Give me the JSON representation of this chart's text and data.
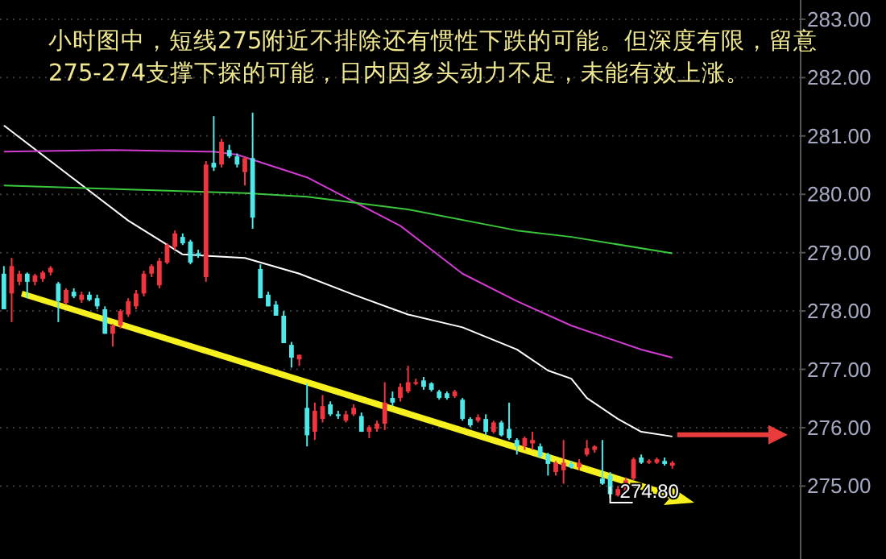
{
  "chart_data": {
    "type": "candlestick",
    "title": "小时图中，短线275附近不排除还有惯性下跌的可能。但深度有限，留意275-274支撑下探的可能，日内因多头动力不足，未能有效上涨。",
    "categories": [
      null,
      null,
      null,
      null,
      null,
      null,
      null,
      null,
      null,
      null,
      null,
      null,
      null,
      null,
      null,
      null,
      null,
      null,
      null,
      null,
      null,
      null,
      null,
      null,
      null,
      null,
      null,
      null,
      null,
      null,
      null,
      null,
      null,
      null,
      null,
      null,
      null,
      null,
      null,
      null,
      null,
      null,
      null,
      null,
      null,
      null,
      null,
      null,
      null,
      null,
      null,
      null,
      null,
      null,
      null,
      null,
      null,
      null,
      null,
      null,
      null,
      null,
      null,
      null,
      null,
      null,
      null,
      null,
      null,
      null,
      null,
      null,
      null,
      null,
      null,
      null,
      null,
      null,
      null,
      null,
      null,
      null,
      null,
      null,
      null,
      null,
      null,
      null,
      null,
      null,
      null,
      null,
      null,
      null,
      null,
      null,
      null,
      null,
      null,
      null,
      null,
      null,
      null
    ],
    "ohlc": [
      [
        278.64,
        278.77,
        278.03,
        278.03
      ],
      [
        278.3,
        278.91,
        277.81,
        278.77
      ],
      [
        278.5,
        278.69,
        278.44,
        278.64
      ],
      [
        278.64,
        278.66,
        278.22,
        278.5
      ],
      [
        278.5,
        278.64,
        278.44,
        278.61
      ],
      [
        278.55,
        278.69,
        278.5,
        278.66
      ],
      [
        278.66,
        278.77,
        278.61,
        278.74
      ],
      [
        278.47,
        278.5,
        277.81,
        278.17
      ],
      [
        278.14,
        278.39,
        278.11,
        278.36
      ],
      [
        278.33,
        278.39,
        278.22,
        278.25
      ],
      [
        278.19,
        278.33,
        278.14,
        278.28
      ],
      [
        278.28,
        278.33,
        278.17,
        278.19
      ],
      [
        278.22,
        278.28,
        278.03,
        278.08
      ],
      [
        278.03,
        278.08,
        277.61,
        277.61
      ],
      [
        277.61,
        277.78,
        277.39,
        277.75
      ],
      [
        277.75,
        278.03,
        277.7,
        278.0
      ],
      [
        277.94,
        278.22,
        277.9,
        278.17
      ],
      [
        278.08,
        278.36,
        278.03,
        278.3
      ],
      [
        278.3,
        278.69,
        278.25,
        278.64
      ],
      [
        278.64,
        278.8,
        278.58,
        278.77
      ],
      [
        278.44,
        278.91,
        278.39,
        278.86
      ],
      [
        278.83,
        279.16,
        278.8,
        279.13
      ],
      [
        279.1,
        279.38,
        279.05,
        279.33
      ],
      [
        279.27,
        279.33,
        279.13,
        279.16
      ],
      [
        279.19,
        279.22,
        278.8,
        278.83
      ],
      [
        278.99,
        279.05,
        278.91,
        278.94
      ],
      [
        278.58,
        280.57,
        278.5,
        280.51
      ],
      [
        280.54,
        281.34,
        280.4,
        280.46
      ],
      [
        280.51,
        280.95,
        280.46,
        280.9
      ],
      [
        280.76,
        280.85,
        280.62,
        280.65
      ],
      [
        280.65,
        280.7,
        280.46,
        280.51
      ],
      [
        280.38,
        280.65,
        280.15,
        280.62
      ],
      [
        280.62,
        281.4,
        279.41,
        279.6
      ],
      [
        278.72,
        278.8,
        278.22,
        278.22
      ],
      [
        278.28,
        278.33,
        278.08,
        278.08
      ],
      [
        278.11,
        278.17,
        277.92,
        277.92
      ],
      [
        277.92,
        278.0,
        277.45,
        277.45
      ],
      [
        277.42,
        277.47,
        277.03,
        277.2
      ],
      [
        277.17,
        277.25,
        277.06,
        277.25
      ],
      [
        276.34,
        276.76,
        275.68,
        275.87
      ],
      [
        275.93,
        276.43,
        275.79,
        276.29
      ],
      [
        276.15,
        276.56,
        276.09,
        276.37
      ],
      [
        276.4,
        276.45,
        276.2,
        276.23
      ],
      [
        276.23,
        276.29,
        276.15,
        276.2
      ],
      [
        276.12,
        276.29,
        276.09,
        276.23
      ],
      [
        276.23,
        276.4,
        276.2,
        276.34
      ],
      [
        276.2,
        276.26,
        275.93,
        275.93
      ],
      [
        275.93,
        276.04,
        275.82,
        276.01
      ],
      [
        275.98,
        276.12,
        275.93,
        276.07
      ],
      [
        276.07,
        276.78,
        275.96,
        276.43
      ],
      [
        276.51,
        276.62,
        276.37,
        276.43
      ],
      [
        276.51,
        276.76,
        276.45,
        276.7
      ],
      [
        276.62,
        277.06,
        276.59,
        276.78
      ],
      [
        276.76,
        276.84,
        276.73,
        276.78
      ],
      [
        276.81,
        276.87,
        276.65,
        276.7
      ],
      [
        276.76,
        276.78,
        276.62,
        276.65
      ],
      [
        276.62,
        276.65,
        276.48,
        276.51
      ],
      [
        276.59,
        276.62,
        276.48,
        276.51
      ],
      [
        276.54,
        276.65,
        276.51,
        276.62
      ],
      [
        276.48,
        276.51,
        276.12,
        276.15
      ],
      [
        276.15,
        276.18,
        276.01,
        276.04
      ],
      [
        276.12,
        276.23,
        276.09,
        276.18
      ],
      [
        276.15,
        276.23,
        275.87,
        275.93
      ],
      [
        275.93,
        276.12,
        275.9,
        276.09
      ],
      [
        276.09,
        276.12,
        275.85,
        275.87
      ],
      [
        275.98,
        276.43,
        275.79,
        275.82
      ],
      [
        275.79,
        275.82,
        275.54,
        275.68
      ],
      [
        275.68,
        275.85,
        275.62,
        275.82
      ],
      [
        275.73,
        275.93,
        275.62,
        275.79
      ],
      [
        275.68,
        275.73,
        275.49,
        275.51
      ],
      [
        275.54,
        275.57,
        275.18,
        275.38
      ],
      [
        275.24,
        275.43,
        275.18,
        275.4
      ],
      [
        275.27,
        275.79,
        275.04,
        275.4
      ],
      [
        275.38,
        275.43,
        275.3,
        275.32
      ],
      [
        275.32,
        275.46,
        275.27,
        275.4
      ],
      [
        275.54,
        275.79,
        275.51,
        275.65
      ],
      [
        275.62,
        275.7,
        275.57,
        275.68
      ],
      [
        275.13,
        275.79,
        275.02,
        275.04
      ],
      [
        275.18,
        275.24,
        274.8,
        274.86
      ],
      [
        274.84,
        275.0,
        274.82,
        274.95
      ],
      [
        274.92,
        275.15,
        274.88,
        275.1
      ],
      [
        275.13,
        275.49,
        275.1,
        275.46
      ],
      [
        275.49,
        275.54,
        275.38,
        275.4
      ],
      [
        275.4,
        275.46,
        275.38,
        275.43
      ],
      [
        275.4,
        275.49,
        275.38,
        275.46
      ],
      [
        275.43,
        275.49,
        275.35,
        275.38
      ],
      [
        275.35,
        275.43,
        275.3,
        275.4
      ],
      null,
      null,
      null,
      null,
      null,
      null,
      null,
      null,
      null,
      null,
      null,
      null,
      null,
      null,
      null,
      null
    ],
    "colors": [
      "#4ee8e8",
      "#f0353f",
      "#f0353f",
      "#4ee8e8",
      "#f0353f",
      "#f0353f",
      "#f0353f",
      "#4ee8e8",
      "#f0353f",
      "#4ee8e8",
      "#f0353f",
      "#4ee8e8",
      "#4ee8e8",
      "#4ee8e8",
      "#f0353f",
      "#f0353f",
      "#f0353f",
      "#f0353f",
      "#f0353f",
      "#f0353f",
      "#f0353f",
      "#f0353f",
      "#f0353f",
      "#4ee8e8",
      "#4ee8e8",
      "#4ee8e8",
      "#f0353f",
      "#4ee8e8",
      "#f0353f",
      "#4ee8e8",
      "#4ee8e8",
      "#f0353f",
      "#4ee8e8",
      "#4ee8e8",
      "#4ee8e8",
      "#4ee8e8",
      "#4ee8e8",
      "#4ee8e8",
      "#f0353f",
      "#4ee8e8",
      "#f0353f",
      "#f0353f",
      "#4ee8e8",
      "#4ee8e8",
      "#f0353f",
      "#f0353f",
      "#4ee8e8",
      "#f0353f",
      "#f0353f",
      "#f0353f",
      "#4ee8e8",
      "#f0353f",
      "#f0353f",
      "#f0353f",
      "#4ee8e8",
      "#4ee8e8",
      "#4ee8e8",
      "#4ee8e8",
      "#f0353f",
      "#4ee8e8",
      "#4ee8e8",
      "#f0353f",
      "#4ee8e8",
      "#f0353f",
      "#4ee8e8",
      "#4ee8e8",
      "#4ee8e8",
      "#f0353f",
      "#f0353f",
      "#4ee8e8",
      "#4ee8e8",
      "#f0353f",
      "#f0353f",
      "#4ee8e8",
      "#f0353f",
      "#f0353f",
      "#f0353f",
      "#4ee8e8",
      "#4ee8e8",
      "#f0353f",
      "#f0353f",
      "#f0353f",
      "#4ee8e8",
      "#f0353f",
      "#f0353f",
      "#4ee8e8",
      "#f0353f",
      null,
      null,
      null,
      null,
      null,
      null,
      null,
      null,
      null,
      null,
      null,
      null,
      null,
      null,
      null,
      null
    ],
    "series": [
      {
        "type": "line",
        "color": "#ffffff",
        "values": [
          281.18,
          null,
          null,
          null,
          null,
          null,
          null,
          null,
          null,
          null,
          null,
          null,
          null,
          null,
          null,
          null,
          279.55,
          null,
          null,
          null,
          null,
          null,
          null,
          278.97,
          null,
          null,
          null,
          null,
          null,
          null,
          null,
          278.91,
          null,
          null,
          null,
          null,
          null,
          null,
          278.64,
          null,
          null,
          null,
          null,
          null,
          null,
          278.28,
          null,
          null,
          null,
          null,
          null,
          null,
          277.94,
          null,
          null,
          null,
          null,
          null,
          null,
          277.72,
          null,
          null,
          null,
          null,
          null,
          null,
          277.34,
          null,
          null,
          null,
          276.98,
          null,
          null,
          276.84,
          null,
          276.51,
          null,
          null,
          null,
          276.15,
          null,
          null,
          275.93,
          null,
          null,
          null,
          275.85,
          null,
          null,
          null,
          null,
          null,
          null,
          null,
          null,
          null,
          null,
          null,
          null,
          null,
          null,
          null,
          null
        ]
      },
      {
        "type": "line",
        "color": "#d23cd2",
        "values": [
          280.73,
          null,
          null,
          null,
          null,
          null,
          null,
          null,
          null,
          null,
          null,
          null,
          null,
          null,
          280.76,
          null,
          null,
          null,
          null,
          null,
          null,
          null,
          null,
          null,
          null,
          null,
          null,
          280.73,
          null,
          null,
          280.68,
          null,
          null,
          null,
          null,
          null,
          null,
          null,
          null,
          280.29,
          null,
          null,
          null,
          null,
          null,
          null,
          null,
          null,
          null,
          null,
          null,
          279.46,
          null,
          null,
          null,
          null,
          null,
          null,
          null,
          278.64,
          null,
          null,
          null,
          null,
          null,
          null,
          278.17,
          null,
          null,
          null,
          null,
          null,
          null,
          277.75,
          null,
          null,
          null,
          null,
          null,
          null,
          null,
          null,
          277.34,
          null,
          null,
          null,
          277.2,
          null,
          null,
          null,
          null,
          null,
          null,
          null,
          null,
          null,
          null,
          null,
          null,
          null,
          null,
          null,
          null
        ]
      },
      {
        "type": "line",
        "color": "#3cc83c",
        "values": [
          280.15,
          null,
          null,
          null,
          null,
          null,
          null,
          null,
          null,
          null,
          null,
          null,
          280.1,
          null,
          null,
          null,
          null,
          null,
          null,
          null,
          null,
          null,
          null,
          null,
          null,
          null,
          null,
          null,
          null,
          null,
          null,
          280.02,
          null,
          null,
          null,
          null,
          null,
          null,
          null,
          279.96,
          null,
          null,
          null,
          null,
          null,
          null,
          null,
          null,
          null,
          null,
          null,
          null,
          279.74,
          null,
          null,
          null,
          null,
          null,
          null,
          null,
          null,
          null,
          null,
          null,
          null,
          null,
          279.38,
          null,
          null,
          null,
          null,
          null,
          null,
          279.27,
          null,
          null,
          null,
          null,
          null,
          null,
          null,
          null,
          null,
          null,
          null,
          null,
          278.99,
          null,
          null,
          null,
          null,
          null,
          null,
          null,
          null,
          null,
          null,
          null,
          null,
          null,
          null,
          null,
          null
        ]
      }
    ],
    "ref_lines": [
      {
        "axis": "y",
        "value": 275.88,
        "color": "#e83c3c"
      }
    ],
    "annotations": [
      "274.80"
    ],
    "ylim": [
      273.75,
      283.33
    ],
    "yticks": [
      {
        "value": 275,
        "label": "275.00"
      },
      {
        "value": 276,
        "label": "276.00"
      },
      {
        "value": 277,
        "label": "277.00"
      },
      {
        "value": 278,
        "label": "278.00"
      },
      {
        "value": 279,
        "label": "279.00"
      },
      {
        "value": 280,
        "label": "280.00"
      },
      {
        "value": 281,
        "label": "281.00"
      },
      {
        "value": 282,
        "label": "282.00"
      },
      {
        "value": 283,
        "label": "283.00"
      }
    ],
    "tick_labels": "y",
    "grid": "y"
  }
}
